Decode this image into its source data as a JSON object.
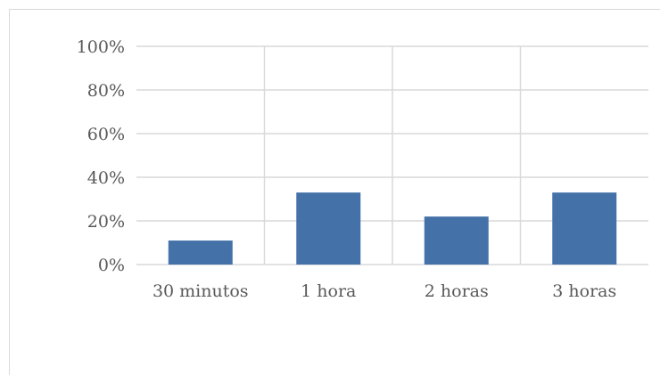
{
  "chart_data": {
    "type": "bar",
    "categories": [
      "30 minutos",
      "1 hora",
      "2 horas",
      "3 horas"
    ],
    "values": [
      11,
      33,
      22,
      33
    ],
    "ylim": [
      0,
      100
    ],
    "yticks": [
      "0%",
      "20%",
      "40%",
      "60%",
      "80%",
      "100%"
    ],
    "grid": true,
    "colors": {
      "bar": "#4472a8",
      "grid": "#d9d9d9",
      "text": "#595959"
    }
  }
}
